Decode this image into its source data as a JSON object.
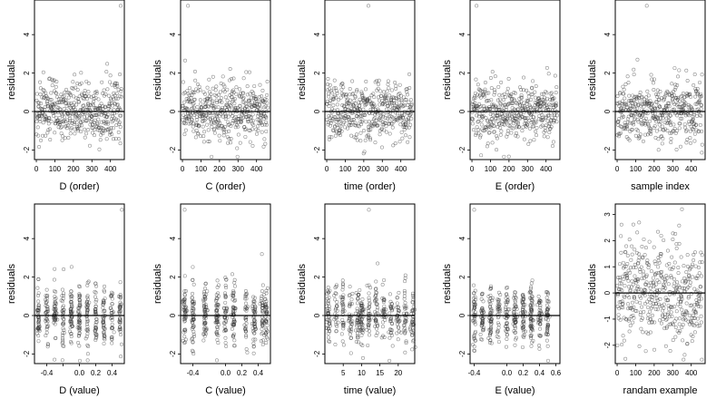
{
  "seed": 12345,
  "chart_data": [
    {
      "type": "scatter",
      "xlabel": "D (order)",
      "ylabel": "residuals",
      "xlim": [
        -10,
        475
      ],
      "ylim": [
        -2.5,
        5.8
      ],
      "xticks": [
        0,
        100,
        200,
        300,
        400
      ],
      "xticklabels": [
        "0",
        "100",
        "200",
        "300",
        "400"
      ],
      "yticks": [
        -2,
        0,
        2,
        4
      ],
      "yticklabels": [
        "-2",
        "0",
        "2",
        "4"
      ],
      "hline": 0,
      "pattern": "order",
      "n": 460,
      "mean": 0,
      "sd": 0.78,
      "outliers": [
        [
          455,
          5.5
        ]
      ]
    },
    {
      "type": "scatter",
      "xlabel": "C (order)",
      "ylabel": "residuals",
      "xlim": [
        -10,
        475
      ],
      "ylim": [
        -2.5,
        5.8
      ],
      "xticks": [
        0,
        100,
        200,
        300,
        400
      ],
      "xticklabels": [
        "0",
        "100",
        "200",
        "300",
        "400"
      ],
      "yticks": [
        -2,
        0,
        2,
        4
      ],
      "yticklabels": [
        "-2",
        "0",
        "2",
        "4"
      ],
      "hline": 0,
      "pattern": "order",
      "n": 460,
      "mean": 0,
      "sd": 0.78,
      "outliers": [
        [
          30,
          5.5
        ]
      ]
    },
    {
      "type": "scatter",
      "xlabel": "time (order)",
      "ylabel": "residuals",
      "xlim": [
        -10,
        475
      ],
      "ylim": [
        -2.5,
        5.8
      ],
      "xticks": [
        0,
        100,
        200,
        300,
        400
      ],
      "xticklabels": [
        "0",
        "100",
        "200",
        "300",
        "400"
      ],
      "yticks": [
        -2,
        0,
        2,
        4
      ],
      "yticklabels": [
        "-2",
        "0",
        "2",
        "4"
      ],
      "hline": 0,
      "pattern": "order",
      "n": 460,
      "mean": 0,
      "sd": 0.78,
      "outliers": [
        [
          225,
          5.5
        ]
      ]
    },
    {
      "type": "scatter",
      "xlabel": "E (order)",
      "ylabel": "residuals",
      "xlim": [
        -10,
        475
      ],
      "ylim": [
        -2.5,
        5.8
      ],
      "xticks": [
        0,
        100,
        200,
        300,
        400
      ],
      "xticklabels": [
        "0",
        "100",
        "200",
        "300",
        "400"
      ],
      "yticks": [
        -2,
        0,
        2,
        4
      ],
      "yticklabels": [
        "-2",
        "0",
        "2",
        "4"
      ],
      "hline": 0,
      "pattern": "order",
      "n": 460,
      "mean": 0,
      "sd": 0.78,
      "outliers": [
        [
          25,
          5.5
        ]
      ]
    },
    {
      "type": "scatter",
      "xlabel": "sample index",
      "ylabel": "residuals",
      "xlim": [
        -10,
        475
      ],
      "ylim": [
        -2.5,
        5.8
      ],
      "xticks": [
        0,
        100,
        200,
        300,
        400
      ],
      "xticklabels": [
        "0",
        "100",
        "200",
        "300",
        "400"
      ],
      "yticks": [
        -2,
        0,
        2,
        4
      ],
      "yticklabels": [
        "-2",
        "0",
        "2",
        "4"
      ],
      "hline": 0,
      "pattern": "order",
      "n": 460,
      "mean": 0,
      "sd": 0.78,
      "outliers": [
        [
          160,
          5.5
        ]
      ]
    },
    {
      "type": "scatter",
      "xlabel": "D (value)",
      "ylabel": "residuals",
      "xlim": [
        -0.55,
        0.55
      ],
      "ylim": [
        -2.5,
        5.8
      ],
      "xticks": [
        -0.4,
        -0.2,
        0.0,
        0.2,
        0.4
      ],
      "xticklabels": [
        "-0.4",
        "",
        "0.0",
        "0.2",
        "0.4"
      ],
      "yticks": [
        -2,
        0,
        2,
        4
      ],
      "yticklabels": [
        "-2",
        "0",
        "2",
        "4"
      ],
      "hline": 0,
      "pattern": "value",
      "n": 460,
      "mean": 0,
      "sd": 0.78,
      "xlevels": [
        -0.5,
        -0.4,
        -0.3,
        -0.2,
        -0.1,
        0.0,
        0.1,
        0.2,
        0.3,
        0.4,
        0.5
      ],
      "xjitter": 0.008,
      "outliers": [
        [
          0.52,
          5.5
        ]
      ]
    },
    {
      "type": "scatter",
      "xlabel": "C (value)",
      "ylabel": "residuals",
      "xlim": [
        -0.55,
        0.55
      ],
      "ylim": [
        -2.5,
        5.8
      ],
      "xticks": [
        -0.4,
        0.0,
        0.2,
        0.4
      ],
      "xticklabels": [
        "-0.4",
        "0.0",
        "0.2",
        "0.4"
      ],
      "yticks": [
        -2,
        0,
        2,
        4
      ],
      "yticklabels": [
        "-2",
        "0",
        "2",
        "4"
      ],
      "hline": 0,
      "pattern": "value",
      "n": 460,
      "mean": 0,
      "sd": 0.78,
      "xlevels": [
        -0.5,
        -0.4,
        -0.25,
        -0.1,
        0.0,
        0.1,
        0.25,
        0.35,
        0.45,
        0.5
      ],
      "xjitter": 0.01,
      "outliers": [
        [
          -0.5,
          5.5
        ]
      ]
    },
    {
      "type": "scatter",
      "xlabel": "time (value)",
      "ylabel": "residuals",
      "xlim": [
        0,
        24.5
      ],
      "ylim": [
        -2.5,
        5.8
      ],
      "xticks": [
        5,
        10,
        15,
        20
      ],
      "xticklabels": [
        "5",
        "10",
        "15",
        "20"
      ],
      "yticks": [
        -2,
        0,
        2,
        4
      ],
      "yticklabels": [
        "-2",
        "0",
        "2",
        "4"
      ],
      "hline": 0,
      "pattern": "value",
      "n": 460,
      "mean": 0,
      "sd": 0.78,
      "xlevels": [
        1,
        3,
        5,
        7,
        9,
        10,
        12,
        14,
        16,
        18,
        20,
        22,
        24
      ],
      "xjitter": 0.25,
      "outliers": [
        [
          12,
          5.5
        ]
      ]
    },
    {
      "type": "scatter",
      "xlabel": "E (value)",
      "ylabel": "residuals",
      "xlim": [
        -0.45,
        0.65
      ],
      "ylim": [
        -2.5,
        5.8
      ],
      "xticks": [
        -0.4,
        0.0,
        0.2,
        0.4,
        0.6
      ],
      "xticklabels": [
        "-0.4",
        "0.0",
        "0.2",
        "0.4",
        "0.6"
      ],
      "yticks": [
        -2,
        0,
        2,
        4
      ],
      "yticklabels": [
        "-2",
        "0",
        "2",
        "4"
      ],
      "hline": 0,
      "pattern": "value",
      "n": 460,
      "mean": 0,
      "sd": 0.78,
      "xlevels": [
        -0.4,
        -0.3,
        -0.2,
        -0.1,
        0.0,
        0.1,
        0.2,
        0.3,
        0.4,
        0.5
      ],
      "xjitter": 0.01,
      "outliers": [
        [
          -0.4,
          5.5
        ]
      ]
    },
    {
      "type": "scatter",
      "xlabel": "randam example",
      "ylabel": "residuals",
      "xlim": [
        -10,
        475
      ],
      "ylim": [
        -2.7,
        3.4
      ],
      "xticks": [
        0,
        100,
        200,
        300,
        400
      ],
      "xticklabels": [
        "0",
        "100",
        "200",
        "300",
        "400"
      ],
      "yticks": [
        -2,
        -1,
        0,
        1,
        2,
        3
      ],
      "yticklabels": [
        "-2",
        "-1",
        "0",
        "1",
        "2",
        "3"
      ],
      "hline": 0,
      "pattern": "order",
      "n": 460,
      "mean": 0,
      "sd": 1.0,
      "outliers": [
        [
          350,
          3.2
        ]
      ]
    }
  ]
}
